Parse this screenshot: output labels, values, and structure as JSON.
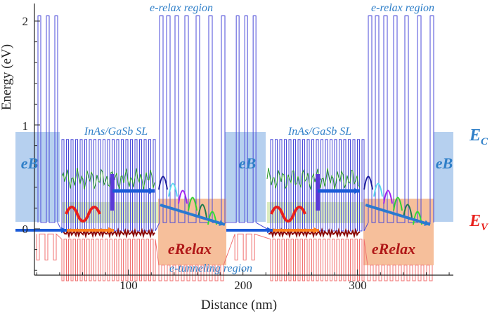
{
  "axes": {
    "xlabel": "Distance (nm)",
    "ylabel": "Energy (eV)",
    "xticks": [
      "100",
      "200",
      "300"
    ],
    "yticks": [
      "0",
      "1",
      "2"
    ],
    "xlim": [
      18,
      384
    ],
    "ylim": [
      -0.45,
      2.15
    ]
  },
  "labels": {
    "relax1": "e-relax region",
    "relax2": "e-relax region",
    "sl1": "InAs/GaSb SL",
    "sl2": "InAs/GaSb SL",
    "eb1": "eB",
    "eb2": "eB",
    "eb3": "eB",
    "erelax1": "eRelax",
    "erelax2": "eRelax",
    "tunnel": "e-tunneling region",
    "ec": "E",
    "ec_sub": "C",
    "ev": "E",
    "ev_sub": "V"
  },
  "colors": {
    "conduction_band": "#4a4ad8",
    "valence_band": "#f07070",
    "eB_box": "#a9c8ec",
    "eRelax_box": "#f4b48a",
    "sl_box": "#d8eab8",
    "label_blue": "#2f7fc8",
    "ev_red": "#e8201c"
  }
}
